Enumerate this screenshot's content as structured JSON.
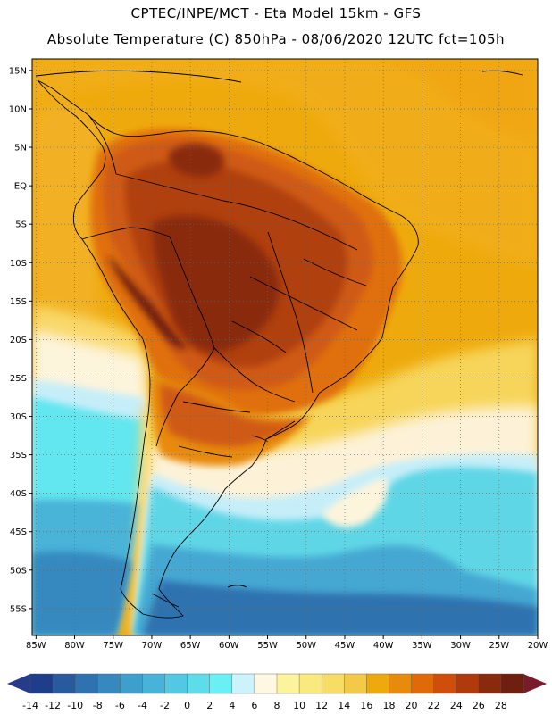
{
  "header": {
    "title_line1": "CPTEC/INPE/MCT -  Eta Model 15km - GFS",
    "title_line2": "Absolute Temperature (C) 850hPa - 08/06/2020 12UTC fct=105h"
  },
  "map": {
    "lat_labels": [
      "15N",
      "10N",
      "5N",
      "EQ",
      "5S",
      "10S",
      "15S",
      "20S",
      "25S",
      "30S",
      "35S",
      "40S",
      "45S",
      "50S",
      "55S"
    ],
    "lon_labels": [
      "85W",
      "80W",
      "75W",
      "70W",
      "65W",
      "60W",
      "55W",
      "50W",
      "45W",
      "40W",
      "35W",
      "30W",
      "25W",
      "20W"
    ],
    "lat_values": [
      15,
      10,
      5,
      0,
      -5,
      -10,
      -15,
      -20,
      -25,
      -30,
      -35,
      -40,
      -45,
      -50,
      -55
    ],
    "lon_values": [
      -85,
      -80,
      -75,
      -70,
      -65,
      -60,
      -55,
      -50,
      -45,
      -40,
      -35,
      -30,
      -25,
      -20
    ],
    "extent": {
      "lon_min": -85.5,
      "lon_max": -20,
      "lat_min": -58.5,
      "lat_max": 16.5
    },
    "ocean_color": "#eeaa0c"
  },
  "colorbar": {
    "labels": [
      "-14",
      "-12",
      "-10",
      "-8",
      "-6",
      "-4",
      "-2",
      "0",
      "2",
      "4",
      "6",
      "8",
      "10",
      "12",
      "14",
      "16",
      "18",
      "20",
      "22",
      "24",
      "26",
      "28"
    ],
    "colors": [
      "#1e3e8c",
      "#2a5a9e",
      "#2f72b0",
      "#3589bf",
      "#3f9fcc",
      "#48b3d8",
      "#52c8e2",
      "#5edcea",
      "#69f0f4",
      "#ccf3fb",
      "#fef8e2",
      "#fcf49c",
      "#faea7e",
      "#f7dc66",
      "#f3ca48",
      "#eeaa0c",
      "#e88a0a",
      "#e06a08",
      "#cf4e0b",
      "#b03a0b",
      "#8a2a0c",
      "#6e1f10"
    ],
    "left_arrow_color": "#263b8a",
    "right_arrow_color": "#7a1a2a"
  }
}
